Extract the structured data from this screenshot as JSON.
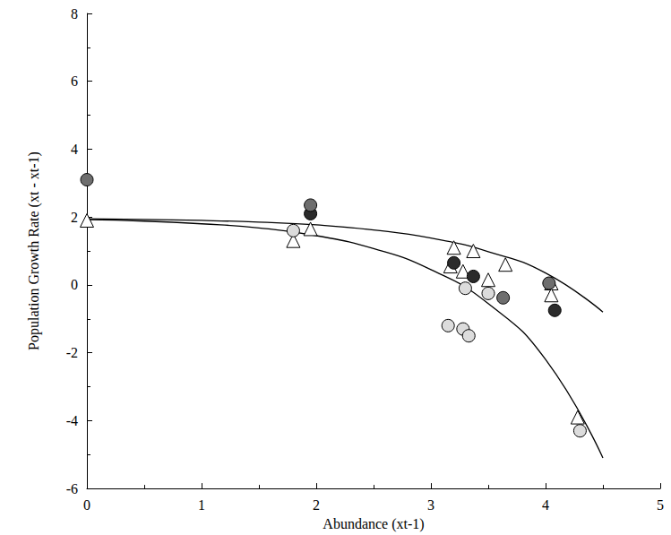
{
  "chart_data": {
    "type": "scatter",
    "x_label": "Abundance (xt-1)",
    "y_label": "Population Growth Rate (xt - xt-1)",
    "xlim": [
      0,
      5
    ],
    "xticks": [
      0,
      1,
      2,
      3,
      4,
      5
    ],
    "ylim": [
      -6,
      8
    ],
    "yticks": [
      -6,
      -4,
      -2,
      0,
      2,
      4,
      6,
      8
    ],
    "grid": false,
    "series": [
      {
        "type": "scatter",
        "marker": "circle",
        "color": "#2b2b2b",
        "x": [
          1.95,
          3.2,
          3.37,
          4.08
        ],
        "values": [
          2.1,
          0.65,
          0.25,
          -0.75
        ]
      },
      {
        "type": "scatter",
        "marker": "circle",
        "color": "#6e6e6e",
        "x": [
          0,
          1.95,
          3.63,
          4.03
        ],
        "values": [
          3.1,
          2.35,
          -0.38,
          0.05
        ]
      },
      {
        "type": "scatter",
        "marker": "circle",
        "color": "#dcdcdc",
        "x": [
          1.8,
          3.15,
          3.28,
          3.33,
          3.3,
          3.5,
          4.3
        ],
        "values": [
          1.6,
          -1.2,
          -1.3,
          -1.5,
          -0.1,
          -0.25,
          -4.3
        ]
      },
      {
        "type": "scatter",
        "marker": "triangle",
        "color": "#ffffff",
        "x": [
          0,
          1.8,
          1.95,
          3.17,
          3.2,
          3.28,
          3.37,
          3.5,
          3.65,
          4.05,
          4.05,
          4.28
        ],
        "values": [
          1.9,
          1.3,
          1.65,
          0.55,
          1.1,
          0.4,
          1.0,
          0.15,
          0.6,
          0.05,
          -0.3,
          -3.9
        ]
      },
      {
        "type": "line",
        "line_style": "solid",
        "color": "#000000",
        "x": [
          0,
          0.5,
          1,
          1.5,
          2,
          2.5,
          3,
          3.5,
          4,
          4.5
        ],
        "values": [
          1.95,
          1.93,
          1.9,
          1.85,
          1.77,
          1.62,
          1.38,
          0.98,
          0.35,
          -0.8
        ]
      },
      {
        "type": "line",
        "line_style": "solid",
        "color": "#000000",
        "x": [
          0,
          0.5,
          1,
          1.5,
          2,
          2.5,
          3,
          3.5,
          4,
          4.5
        ],
        "values": [
          1.92,
          1.88,
          1.8,
          1.68,
          1.45,
          1.07,
          0.45,
          -0.55,
          -2.2,
          -5.1
        ]
      }
    ]
  }
}
